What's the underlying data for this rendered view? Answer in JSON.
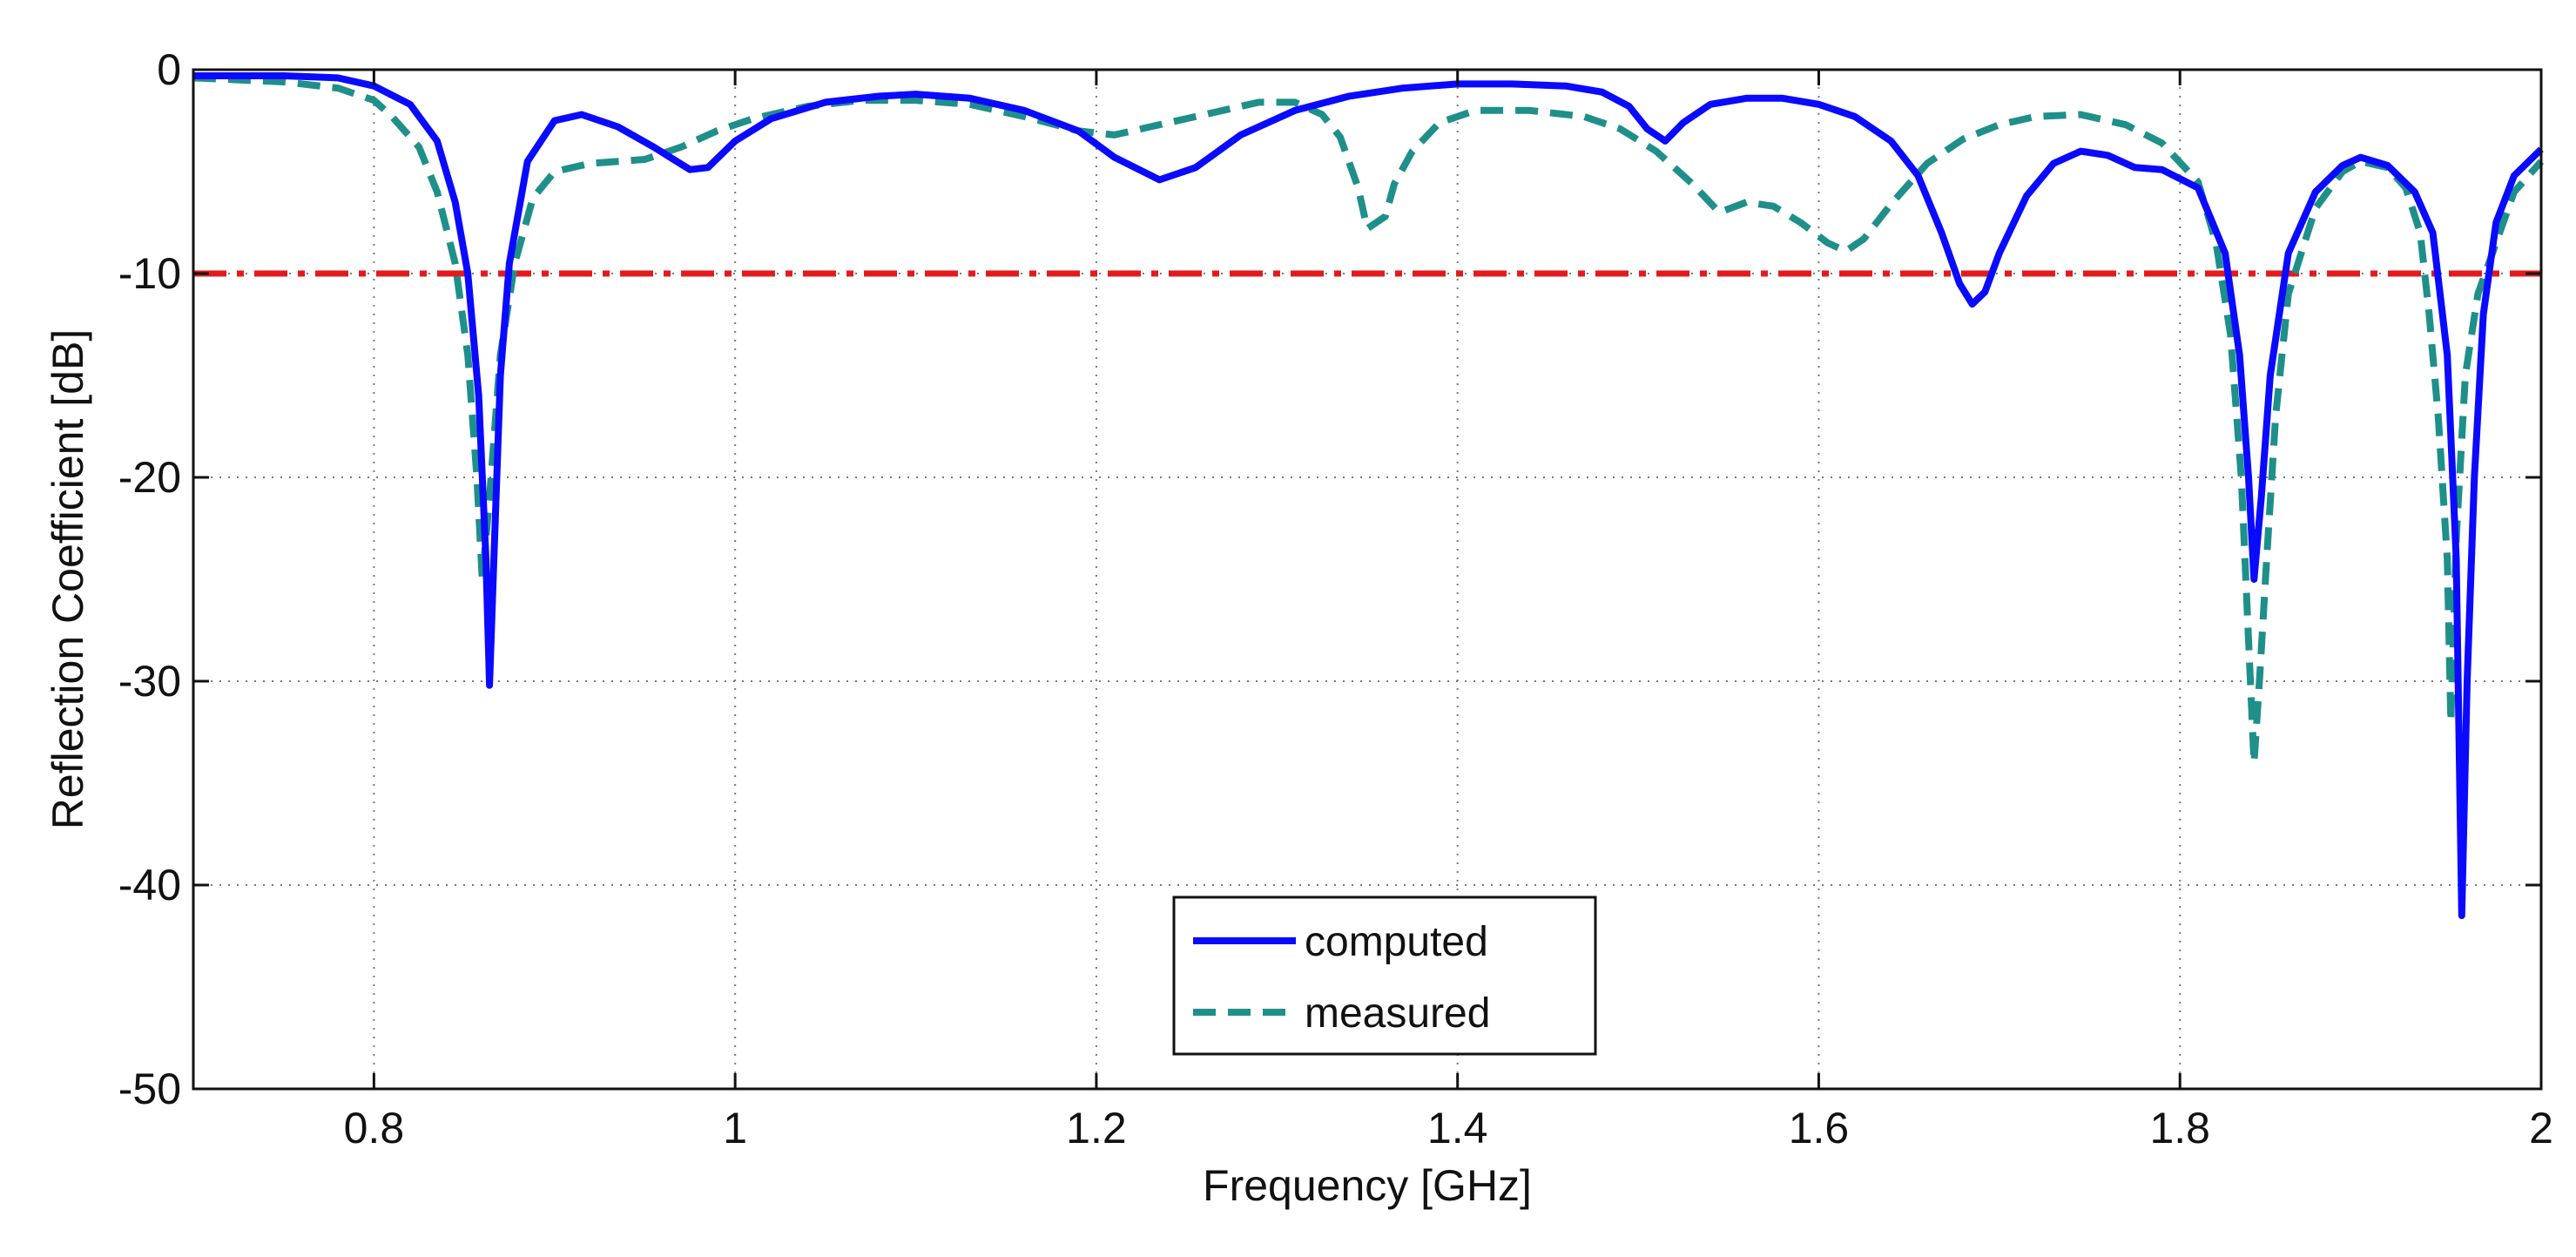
{
  "chart_data": {
    "type": "line",
    "title": "",
    "xlabel": "Frequency [GHz]",
    "ylabel": "Reflection Coefficient [dB]",
    "xlim": [
      0.7,
      2.0
    ],
    "ylim": [
      -50,
      0
    ],
    "x_ticks": [
      0.8,
      1,
      1.2,
      1.4,
      1.6,
      1.8,
      2
    ],
    "x_tick_labels": [
      "0.8",
      "1",
      "1.2",
      "1.4",
      "1.6",
      "1.8",
      "2"
    ],
    "y_ticks": [
      0,
      -10,
      -20,
      -30,
      -40,
      -50
    ],
    "y_tick_labels": [
      "0",
      "-10",
      "-20",
      "-30",
      "-40",
      "-50"
    ],
    "grid": true,
    "legend_position": "bottom-center",
    "reference_line": {
      "y": -10,
      "color": "#e31a1c",
      "style": "dash-dot"
    },
    "series": [
      {
        "name": "computed",
        "color": "#0a0aff",
        "style": "solid",
        "points": [
          [
            0.7,
            -0.3
          ],
          [
            0.75,
            -0.3
          ],
          [
            0.78,
            -0.4
          ],
          [
            0.8,
            -0.8
          ],
          [
            0.82,
            -1.7
          ],
          [
            0.835,
            -3.5
          ],
          [
            0.845,
            -6.5
          ],
          [
            0.852,
            -10
          ],
          [
            0.858,
            -16
          ],
          [
            0.862,
            -24
          ],
          [
            0.864,
            -30.2
          ],
          [
            0.866,
            -25
          ],
          [
            0.87,
            -15
          ],
          [
            0.875,
            -9.5
          ],
          [
            0.885,
            -4.5
          ],
          [
            0.9,
            -2.5
          ],
          [
            0.915,
            -2.2
          ],
          [
            0.935,
            -2.8
          ],
          [
            0.955,
            -3.8
          ],
          [
            0.975,
            -4.9
          ],
          [
            0.985,
            -4.8
          ],
          [
            1.0,
            -3.5
          ],
          [
            1.02,
            -2.4
          ],
          [
            1.05,
            -1.6
          ],
          [
            1.08,
            -1.3
          ],
          [
            1.1,
            -1.2
          ],
          [
            1.13,
            -1.4
          ],
          [
            1.16,
            -2.0
          ],
          [
            1.19,
            -3.0
          ],
          [
            1.21,
            -4.3
          ],
          [
            1.235,
            -5.4
          ],
          [
            1.255,
            -4.8
          ],
          [
            1.28,
            -3.2
          ],
          [
            1.31,
            -2.0
          ],
          [
            1.34,
            -1.3
          ],
          [
            1.37,
            -0.9
          ],
          [
            1.4,
            -0.7
          ],
          [
            1.43,
            -0.7
          ],
          [
            1.46,
            -0.8
          ],
          [
            1.48,
            -1.1
          ],
          [
            1.495,
            -1.8
          ],
          [
            1.505,
            -2.9
          ],
          [
            1.515,
            -3.5
          ],
          [
            1.525,
            -2.6
          ],
          [
            1.54,
            -1.7
          ],
          [
            1.56,
            -1.4
          ],
          [
            1.58,
            -1.4
          ],
          [
            1.6,
            -1.7
          ],
          [
            1.62,
            -2.3
          ],
          [
            1.64,
            -3.5
          ],
          [
            1.655,
            -5.2
          ],
          [
            1.668,
            -8.0
          ],
          [
            1.678,
            -10.5
          ],
          [
            1.685,
            -11.5
          ],
          [
            1.692,
            -10.9
          ],
          [
            1.7,
            -9.0
          ],
          [
            1.715,
            -6.2
          ],
          [
            1.73,
            -4.6
          ],
          [
            1.745,
            -4.0
          ],
          [
            1.76,
            -4.2
          ],
          [
            1.775,
            -4.8
          ],
          [
            1.79,
            -4.9
          ],
          [
            1.81,
            -5.8
          ],
          [
            1.825,
            -9.0
          ],
          [
            1.833,
            -14
          ],
          [
            1.838,
            -20
          ],
          [
            1.841,
            -25
          ],
          [
            1.845,
            -21
          ],
          [
            1.85,
            -15
          ],
          [
            1.86,
            -9
          ],
          [
            1.875,
            -6
          ],
          [
            1.89,
            -4.7
          ],
          [
            1.9,
            -4.3
          ],
          [
            1.915,
            -4.7
          ],
          [
            1.93,
            -6.0
          ],
          [
            1.94,
            -8.0
          ],
          [
            1.948,
            -14
          ],
          [
            1.953,
            -24
          ],
          [
            1.956,
            -41.5
          ],
          [
            1.959,
            -30
          ],
          [
            1.963,
            -20
          ],
          [
            1.968,
            -12
          ],
          [
            1.975,
            -7.5
          ],
          [
            1.985,
            -5.2
          ],
          [
            2.0,
            -3.9
          ]
        ]
      },
      {
        "name": "measured",
        "color": "#1f8f8a",
        "style": "dashed",
        "points": [
          [
            0.7,
            -0.4
          ],
          [
            0.75,
            -0.6
          ],
          [
            0.78,
            -0.9
          ],
          [
            0.8,
            -1.5
          ],
          [
            0.81,
            -2.3
          ],
          [
            0.825,
            -3.8
          ],
          [
            0.835,
            -6.0
          ],
          [
            0.845,
            -9.5
          ],
          [
            0.852,
            -14
          ],
          [
            0.857,
            -20
          ],
          [
            0.86,
            -25.0
          ],
          [
            0.864,
            -21
          ],
          [
            0.87,
            -14
          ],
          [
            0.878,
            -9.5
          ],
          [
            0.888,
            -6.3
          ],
          [
            0.9,
            -5.0
          ],
          [
            0.92,
            -4.6
          ],
          [
            0.95,
            -4.4
          ],
          [
            0.97,
            -3.8
          ],
          [
            0.99,
            -3.0
          ],
          [
            1.01,
            -2.4
          ],
          [
            1.04,
            -1.8
          ],
          [
            1.07,
            -1.5
          ],
          [
            1.1,
            -1.5
          ],
          [
            1.13,
            -1.7
          ],
          [
            1.16,
            -2.3
          ],
          [
            1.19,
            -3.0
          ],
          [
            1.21,
            -3.2
          ],
          [
            1.23,
            -2.8
          ],
          [
            1.26,
            -2.2
          ],
          [
            1.29,
            -1.6
          ],
          [
            1.31,
            -1.6
          ],
          [
            1.325,
            -2.2
          ],
          [
            1.335,
            -3.3
          ],
          [
            1.345,
            -5.8
          ],
          [
            1.35,
            -7.8
          ],
          [
            1.36,
            -7.2
          ],
          [
            1.365,
            -5.6
          ],
          [
            1.375,
            -4.0
          ],
          [
            1.39,
            -2.6
          ],
          [
            1.41,
            -2.0
          ],
          [
            1.44,
            -2.0
          ],
          [
            1.47,
            -2.3
          ],
          [
            1.49,
            -2.9
          ],
          [
            1.51,
            -4.0
          ],
          [
            1.53,
            -5.6
          ],
          [
            1.545,
            -7.0
          ],
          [
            1.56,
            -6.5
          ],
          [
            1.575,
            -6.7
          ],
          [
            1.59,
            -7.5
          ],
          [
            1.605,
            -8.5
          ],
          [
            1.615,
            -8.9
          ],
          [
            1.625,
            -8.3
          ],
          [
            1.64,
            -6.6
          ],
          [
            1.66,
            -4.6
          ],
          [
            1.68,
            -3.4
          ],
          [
            1.7,
            -2.7
          ],
          [
            1.72,
            -2.3
          ],
          [
            1.745,
            -2.2
          ],
          [
            1.77,
            -2.7
          ],
          [
            1.79,
            -3.6
          ],
          [
            1.81,
            -5.5
          ],
          [
            1.82,
            -8.5
          ],
          [
            1.828,
            -13
          ],
          [
            1.834,
            -20
          ],
          [
            1.838,
            -28
          ],
          [
            1.841,
            -34.0
          ],
          [
            1.844,
            -30
          ],
          [
            1.848,
            -24
          ],
          [
            1.853,
            -17
          ],
          [
            1.86,
            -11
          ],
          [
            1.875,
            -6.8
          ],
          [
            1.89,
            -5.0
          ],
          [
            1.9,
            -4.5
          ],
          [
            1.915,
            -4.8
          ],
          [
            1.925,
            -5.8
          ],
          [
            1.933,
            -8.0
          ],
          [
            1.938,
            -12
          ],
          [
            1.943,
            -17
          ],
          [
            1.948,
            -24
          ],
          [
            1.95,
            -32.0
          ],
          [
            1.953,
            -23
          ],
          [
            1.958,
            -15
          ],
          [
            1.965,
            -11
          ],
          [
            1.975,
            -8.5
          ],
          [
            1.985,
            -6
          ],
          [
            2.0,
            -4.5
          ]
        ]
      }
    ]
  }
}
